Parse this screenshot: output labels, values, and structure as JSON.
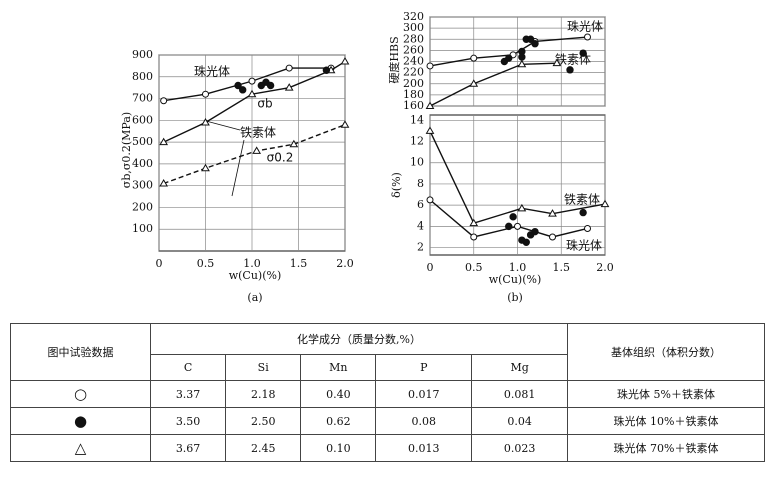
{
  "chart_data": [
    {
      "type": "scatter",
      "caption": "(a)",
      "xlabel": "w(Cu)(%)",
      "ylabel": "σb,σ0.2(MPa)",
      "xlim": [
        0,
        2.0
      ],
      "xticks": [
        0,
        0.5,
        {
          "value": 1,
          "label": "1.0"
        },
        1.5,
        {
          "value": 2,
          "label": "2.0"
        }
      ],
      "ylim": [
        0,
        900
      ],
      "yticks": [
        100,
        200,
        300,
        400,
        500,
        600,
        700,
        800,
        900
      ],
      "grid": true,
      "xtick_labels": true,
      "annotations": [
        "珠光体",
        "σb",
        "铁素体",
        "σ0.2"
      ],
      "series": [
        {
          "marker": "circle-open",
          "line": "solid",
          "color": "#111",
          "x": [
            0.05,
            0.5,
            1.0,
            1.4,
            1.85
          ],
          "values": [
            690,
            720,
            780,
            840,
            840
          ]
        },
        {
          "marker": "triangle-open",
          "line": "solid",
          "color": "#111",
          "x": [
            0.05,
            0.5,
            1.0,
            1.4,
            1.85,
            2.0
          ],
          "values": [
            500,
            590,
            720,
            750,
            830,
            870
          ]
        },
        {
          "marker": "circle-filled",
          "line": null,
          "color": "#111",
          "x": [
            0.85,
            0.9,
            1.1,
            1.15,
            1.2,
            1.8
          ],
          "values": [
            760,
            740,
            760,
            775,
            760,
            830
          ]
        },
        {
          "marker": "triangle-open",
          "line": "dashed",
          "color": "#111",
          "x": [
            0.05,
            0.5,
            1.05,
            1.45,
            2.0
          ],
          "values": [
            310,
            380,
            460,
            490,
            580
          ]
        }
      ]
    },
    {
      "type": "scatter",
      "ylabel": "硬度HBS",
      "xlim": [
        0,
        2.0
      ],
      "xticks": [
        0,
        0.5,
        1,
        1.5,
        2
      ],
      "xtick_labels": false,
      "ylim": [
        160,
        320
      ],
      "yticks": [
        160,
        180,
        200,
        220,
        240,
        260,
        280,
        300,
        320
      ],
      "grid": true,
      "annotations": [
        "珠光体",
        "铁素体"
      ],
      "series": [
        {
          "marker": "circle-open",
          "line": "solid",
          "color": "#111",
          "x": [
            0,
            0.5,
            0.95,
            1.2,
            1.8
          ],
          "values": [
            232,
            246,
            252,
            276,
            284
          ]
        },
        {
          "marker": "triangle-open",
          "line": "solid",
          "color": "#111",
          "x": [
            0,
            0.5,
            1.05,
            1.45
          ],
          "values": [
            160,
            200,
            235,
            237
          ]
        },
        {
          "marker": "circle-filled",
          "line": null,
          "color": "#111",
          "x": [
            0.85,
            0.9,
            1.05,
            1.1,
            1.15,
            1.2,
            1.05,
            1.6,
            1.75
          ],
          "values": [
            240,
            246,
            258,
            280,
            280,
            272,
            248,
            225,
            255
          ]
        }
      ]
    },
    {
      "type": "scatter",
      "caption": "(b)",
      "xlabel": "w(Cu)(%)",
      "ylabel": "δ(%)",
      "xlim": [
        0,
        2.0
      ],
      "xticks": [
        0,
        0.5,
        {
          "value": 1,
          "label": "1.0"
        },
        1.5,
        {
          "value": 2,
          "label": "2.0"
        }
      ],
      "xtick_labels": true,
      "ylim": [
        1.3,
        14.5
      ],
      "yticks": [
        2,
        4,
        6,
        8,
        10,
        12,
        14
      ],
      "grid": true,
      "annotations": [
        "铁素体",
        "珠光体"
      ],
      "series": [
        {
          "marker": "triangle-open",
          "line": "solid",
          "color": "#111",
          "x": [
            0,
            0.5,
            1.05,
            1.4,
            2.0
          ],
          "values": [
            13,
            4.3,
            5.7,
            5.2,
            6.1
          ]
        },
        {
          "marker": "circle-open",
          "line": "solid",
          "color": "#111",
          "x": [
            0,
            0.5,
            1.0,
            1.4,
            1.8
          ],
          "values": [
            6.5,
            3.0,
            4.0,
            3.0,
            3.8
          ]
        },
        {
          "marker": "circle-filled",
          "line": null,
          "color": "#111",
          "x": [
            0.9,
            0.95,
            1.05,
            1.1,
            1.15,
            1.2,
            1.75
          ],
          "values": [
            4.0,
            4.9,
            2.7,
            2.5,
            3.2,
            3.5,
            5.3
          ]
        }
      ]
    }
  ],
  "table": {
    "header": [
      "图中试验数据",
      "化学成分（质量分数,%）",
      "基体组织（体积分数）"
    ],
    "subheader": [
      "C",
      "Si",
      "Mn",
      "P",
      "Mg"
    ],
    "rows": [
      [
        "○",
        "3.37",
        "2.18",
        "0.40",
        "0.017",
        "0.081",
        "珠光体 5%＋铁素体"
      ],
      [
        "●",
        "3.50",
        "2.50",
        "0.62",
        "0.08",
        "0.04",
        "珠光体 10%＋铁素体"
      ],
      [
        "△",
        "3.67",
        "2.45",
        "0.10",
        "0.013",
        "0.023",
        "珠光体 70%＋铁素体"
      ]
    ]
  }
}
